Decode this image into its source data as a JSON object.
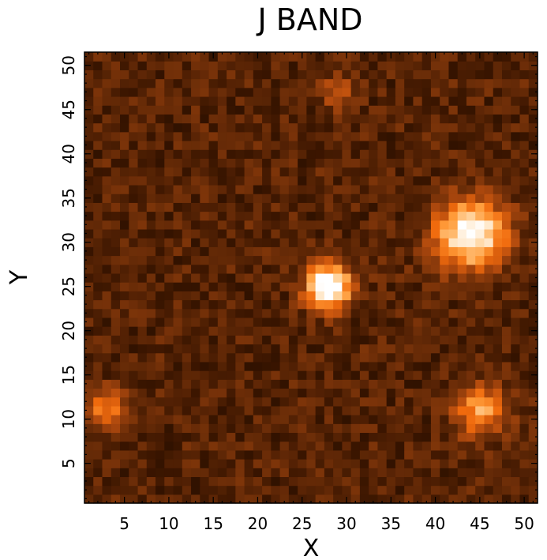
{
  "chart_data": {
    "type": "heatmap",
    "title": "J BAND",
    "xlabel": "X",
    "ylabel": "Y",
    "xlim": [
      0.5,
      51.5
    ],
    "ylim": [
      0.5,
      51.5
    ],
    "grid_size": [
      51,
      51
    ],
    "x_ticks": [
      5,
      10,
      15,
      20,
      25,
      30,
      35,
      40,
      45,
      50
    ],
    "y_ticks": [
      5,
      10,
      15,
      20,
      25,
      30,
      35,
      40,
      45,
      50
    ],
    "colormap": [
      "#000000",
      "#3a1500",
      "#6e2e08",
      "#b14a0e",
      "#f06a0d",
      "#ff9c3a",
      "#ffd9a8",
      "#ffffff"
    ],
    "value_range": [
      0,
      1
    ],
    "background_level": 0.22,
    "background_noise": 0.1,
    "sources": [
      {
        "x": 28,
        "y": 25,
        "peak": 1.0,
        "sigma": 1.7
      },
      {
        "x": 44,
        "y": 31,
        "peak": 0.85,
        "sigma": 2.7
      },
      {
        "x": 45,
        "y": 11,
        "peak": 0.5,
        "sigma": 2.0
      },
      {
        "x": 3,
        "y": 11,
        "peak": 0.4,
        "sigma": 1.6
      },
      {
        "x": 29,
        "y": 47,
        "peak": 0.22,
        "sigma": 1.3
      }
    ]
  }
}
